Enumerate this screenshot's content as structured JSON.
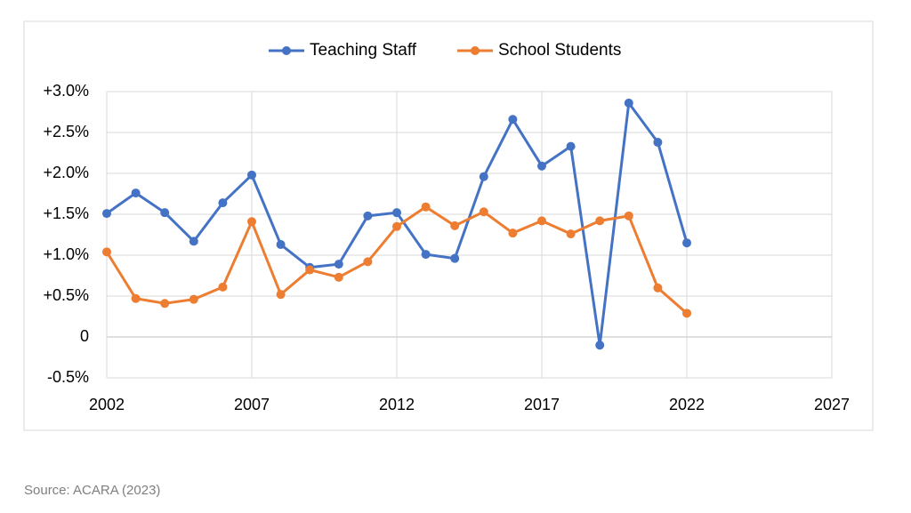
{
  "chart_data": {
    "type": "line",
    "x": [
      2002,
      2003,
      2004,
      2005,
      2006,
      2007,
      2008,
      2009,
      2010,
      2011,
      2012,
      2013,
      2014,
      2015,
      2016,
      2017,
      2018,
      2019,
      2020,
      2021,
      2022
    ],
    "series": [
      {
        "name": "Teaching Staff",
        "color": "#4472c4",
        "values": [
          1.51,
          1.76,
          1.52,
          1.17,
          1.64,
          1.98,
          1.13,
          0.85,
          0.89,
          1.48,
          1.52,
          1.01,
          0.96,
          1.96,
          2.66,
          2.09,
          2.33,
          -0.1,
          2.86,
          2.38,
          1.15
        ]
      },
      {
        "name": "School Students",
        "color": "#ed7d31",
        "values": [
          1.04,
          0.47,
          0.41,
          0.46,
          0.61,
          1.41,
          0.52,
          0.82,
          0.73,
          0.92,
          1.35,
          1.59,
          1.36,
          1.53,
          1.27,
          1.42,
          1.26,
          1.42,
          1.48,
          0.6,
          0.29
        ]
      }
    ],
    "xlim": [
      2002,
      2027
    ],
    "xticks": [
      2002,
      2007,
      2012,
      2017,
      2022,
      2027
    ],
    "ylim": [
      -0.5,
      3.0
    ],
    "yticks": [
      {
        "value": -0.5,
        "label": "-0.5%"
      },
      0,
      {
        "value": 0.5,
        "label": "+0.5%"
      },
      {
        "value": 1.0,
        "label": "+1.0%"
      },
      {
        "value": 1.5,
        "label": "+1.5%"
      },
      {
        "value": 2.0,
        "label": "+2.0%"
      },
      {
        "value": 2.5,
        "label": "+2.5%"
      },
      {
        "value": 3.0,
        "label": "+3.0%"
      }
    ],
    "grid": true,
    "legend": "top",
    "source": "Source: ACARA (2023)"
  }
}
